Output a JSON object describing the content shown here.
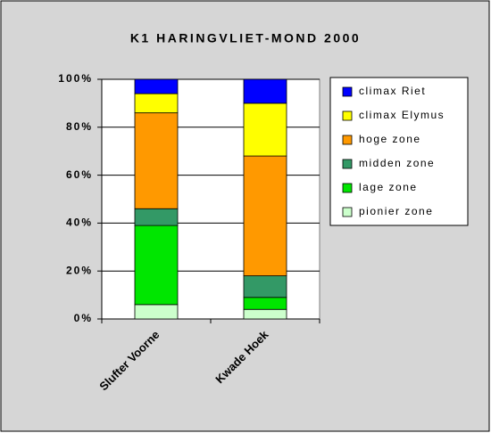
{
  "chart_data": {
    "type": "stacked_bar_percent",
    "title": "K1  HARINGVLIET-MOND 2000",
    "categories": [
      "Slufter Voorne",
      "Kwade Hoek"
    ],
    "series": [
      {
        "name": "pionier zone",
        "color": "#ccffcc",
        "values": [
          6,
          4
        ]
      },
      {
        "name": "lage zone",
        "color": "#00e600",
        "values": [
          33,
          5
        ]
      },
      {
        "name": "midden zone",
        "color": "#339966",
        "values": [
          7,
          9
        ]
      },
      {
        "name": "hoge zone",
        "color": "#ff9900",
        "values": [
          40,
          50
        ]
      },
      {
        "name": "climax Elymus",
        "color": "#ffff00",
        "values": [
          8,
          22
        ]
      },
      {
        "name": "climax Riet",
        "color": "#0000ff",
        "values": [
          6,
          10
        ]
      }
    ],
    "ylim": [
      0,
      100
    ],
    "yticks": [
      {
        "value": 0,
        "label": "0%"
      },
      {
        "value": 20,
        "label": "20%"
      },
      {
        "value": 40,
        "label": "40%"
      },
      {
        "value": 60,
        "label": "60%"
      },
      {
        "value": 80,
        "label": "80%"
      },
      {
        "value": 100,
        "label": "100%"
      }
    ],
    "grid": true,
    "legend": "right"
  }
}
